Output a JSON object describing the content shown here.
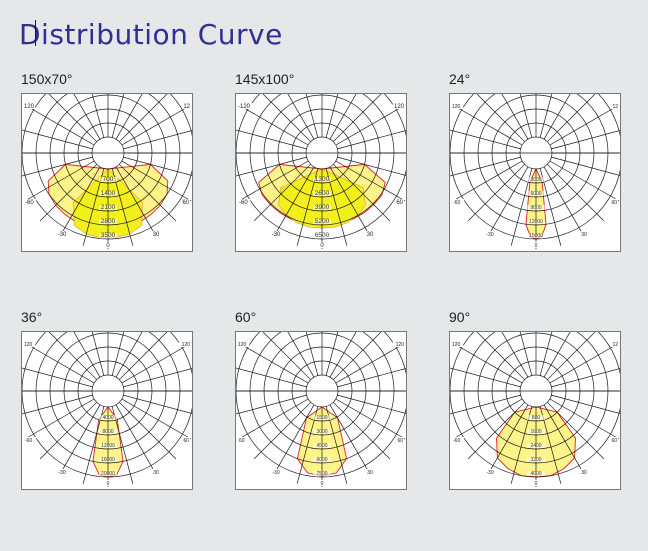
{
  "page": {
    "title": "Distribution Curve"
  },
  "chart_data": [
    {
      "type": "polar",
      "title": "150x70°",
      "angle_ticks": {
        "left_top": "120",
        "right_top": "12",
        "left_mid": "-60",
        "right_mid": "60",
        "left_low": "-30",
        "right_low": "30",
        "bottom": "0"
      },
      "radial_ticks": [
        "700",
        "1400",
        "2100",
        "2800",
        "3500"
      ],
      "r_max": 3500,
      "series": [
        {
          "values_deg": [
            -75,
            -65,
            -55,
            -45,
            -35,
            -25,
            -15,
            -5,
            5,
            15,
            25,
            35,
            45,
            55,
            65,
            75
          ],
          "values": [
            1400,
            2500,
            2800,
            2900,
            2950,
            3000,
            3050,
            3050,
            3050,
            3050,
            3000,
            2950,
            2900,
            2800,
            2500,
            1400
          ]
        },
        {
          "values_deg": [
            -35,
            -25,
            -15,
            -5,
            5,
            15,
            25,
            35
          ],
          "values": [
            2200,
            3200,
            3400,
            3450,
            3450,
            3400,
            3200,
            2200
          ]
        }
      ]
    },
    {
      "type": "polar",
      "title": "145x100°",
      "angle_ticks": {
        "left_top": "-120",
        "right_top": "120",
        "left_mid": "-60",
        "right_mid": "60",
        "left_low": "-30",
        "right_low": "30",
        "bottom": "0"
      },
      "radial_ticks": [
        "1300",
        "2600",
        "3900",
        "5200",
        "6500"
      ],
      "r_max": 6500,
      "series": [
        {
          "values_deg": [
            -75,
            -65,
            -55,
            -45,
            -35,
            -25,
            -15,
            -5,
            5,
            15,
            25,
            35,
            45,
            55,
            65,
            75
          ],
          "values": [
            2600,
            5000,
            5300,
            5300,
            5300,
            5300,
            5300,
            5300,
            5300,
            5300,
            5300,
            5300,
            5300,
            5300,
            5000,
            2600
          ]
        },
        {
          "values_deg": [
            -50,
            -40,
            -30,
            -20,
            -10,
            0,
            10,
            20,
            30,
            40,
            50
          ],
          "values": [
            3500,
            4800,
            5200,
            5400,
            5500,
            5500,
            5500,
            5400,
            5200,
            4800,
            3500
          ]
        }
      ]
    },
    {
      "type": "polar",
      "title": "24°",
      "angle_ticks": {
        "left_top": "120",
        "right_top": "12",
        "left_mid": "-60",
        "right_mid": "60",
        "left_low": "-30",
        "right_low": "30",
        "bottom": "0"
      },
      "radial_ticks": [
        "3000",
        "6000",
        "9000",
        "12000",
        "15000"
      ],
      "r_max": 15000,
      "series": [
        {
          "values_deg": [
            -12,
            -8,
            -4,
            0,
            4,
            8,
            12
          ],
          "values": [
            3000,
            12000,
            14500,
            15000,
            14500,
            12000,
            3000
          ]
        }
      ]
    },
    {
      "type": "polar",
      "title": "36°",
      "angle_ticks": {
        "left_top": "120",
        "right_top": "120",
        "left_mid": "-60",
        "right_mid": "60",
        "left_low": "-30",
        "right_low": "30",
        "bottom": "0"
      },
      "radial_ticks": [
        "4000",
        "8000",
        "12000",
        "16000",
        "20000"
      ],
      "r_max": 20000,
      "series": [
        {
          "values_deg": [
            -18,
            -12,
            -6,
            0,
            6,
            12,
            18
          ],
          "values": [
            4000,
            16000,
            19500,
            20000,
            19500,
            16000,
            4000
          ]
        }
      ]
    },
    {
      "type": "polar",
      "title": "60°",
      "angle_ticks": {
        "left_top": "120",
        "right_top": "120",
        "left_mid": "60",
        "right_mid": "60",
        "left_low": "-30",
        "right_low": "30",
        "bottom": "0"
      },
      "radial_ticks": [
        "1500",
        "3000",
        "4500",
        "6000",
        "7500"
      ],
      "r_max": 7500,
      "series": [
        {
          "values_deg": [
            -30,
            -20,
            -10,
            0,
            10,
            20,
            30
          ],
          "values": [
            1600,
            6000,
            7200,
            7400,
            7200,
            6000,
            1600
          ]
        }
      ]
    },
    {
      "type": "polar",
      "title": "90°",
      "angle_ticks": {
        "left_top": "120",
        "right_top": "12",
        "left_mid": "-60",
        "right_mid": "60",
        "left_low": "-30",
        "right_low": "30",
        "bottom": "0"
      },
      "radial_ticks": [
        "800",
        "1600",
        "2400",
        "3200",
        "4000"
      ],
      "r_max": 4000,
      "series": [
        {
          "values_deg": [
            -45,
            -40,
            -30,
            -20,
            -10,
            0,
            10,
            20,
            30,
            40,
            45
          ],
          "values": [
            800,
            2600,
            3500,
            3800,
            4000,
            4000,
            4000,
            3800,
            3500,
            2600,
            800
          ]
        }
      ]
    }
  ],
  "style": {
    "fill_outer": "#fff38a",
    "fill_inner": "#f2ef1a",
    "curve": "#e0202a",
    "grid": "#1a1a1a"
  }
}
